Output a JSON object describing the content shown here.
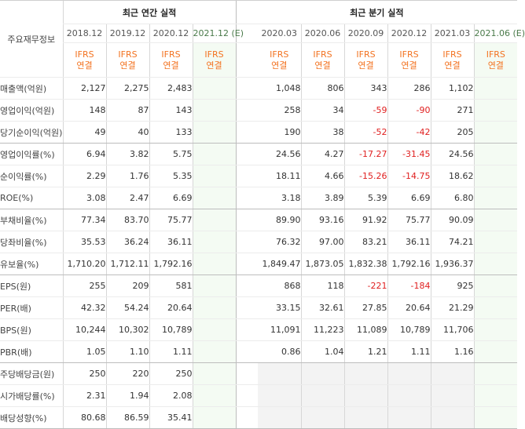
{
  "header": {
    "row_header": "주요재무정보",
    "annual_title": "최근 연간 실적",
    "quarterly_title": "최근 분기 실적"
  },
  "annual_periods": [
    "2018.12",
    "2019.12",
    "2020.12",
    "2021.12 (E)"
  ],
  "quarterly_periods": [
    "2020.03",
    "2020.06",
    "2020.09",
    "2020.12",
    "2021.03",
    "2021.06 (E)"
  ],
  "accounting": {
    "line1": "IFRS",
    "line2": "연결"
  },
  "rows": [
    {
      "label": "매출액(억원)",
      "annual": [
        "2,127",
        "2,275",
        "2,483",
        ""
      ],
      "quarterly": [
        "1,048",
        "806",
        "343",
        "286",
        "1,102",
        ""
      ]
    },
    {
      "label": "영업이익(억원)",
      "annual": [
        "148",
        "87",
        "143",
        ""
      ],
      "quarterly": [
        "258",
        "34",
        "-59",
        "-90",
        "271",
        ""
      ]
    },
    {
      "label": "당기순이익(억원)",
      "annual": [
        "49",
        "40",
        "133",
        ""
      ],
      "quarterly": [
        "190",
        "38",
        "-52",
        "-42",
        "205",
        ""
      ]
    },
    {
      "label": "영업이익률(%)",
      "annual": [
        "6.94",
        "3.82",
        "5.75",
        ""
      ],
      "quarterly": [
        "24.56",
        "4.27",
        "-17.27",
        "-31.45",
        "24.56",
        ""
      ]
    },
    {
      "label": "순이익률(%)",
      "annual": [
        "2.29",
        "1.76",
        "5.35",
        ""
      ],
      "quarterly": [
        "18.11",
        "4.66",
        "-15.26",
        "-14.75",
        "18.62",
        ""
      ]
    },
    {
      "label": "ROE(%)",
      "annual": [
        "3.08",
        "2.47",
        "6.69",
        ""
      ],
      "quarterly": [
        "3.18",
        "3.89",
        "5.39",
        "6.69",
        "6.80",
        ""
      ]
    },
    {
      "label": "부채비율(%)",
      "annual": [
        "77.34",
        "83.70",
        "75.77",
        ""
      ],
      "quarterly": [
        "89.90",
        "93.16",
        "91.92",
        "75.77",
        "90.09",
        ""
      ]
    },
    {
      "label": "당좌비율(%)",
      "annual": [
        "35.53",
        "36.24",
        "36.11",
        ""
      ],
      "quarterly": [
        "76.32",
        "97.00",
        "83.21",
        "36.11",
        "74.21",
        ""
      ]
    },
    {
      "label": "유보율(%)",
      "annual": [
        "1,710.20",
        "1,712.11",
        "1,792.16",
        ""
      ],
      "quarterly": [
        "1,849.47",
        "1,873.05",
        "1,832.38",
        "1,792.16",
        "1,936.37",
        ""
      ]
    },
    {
      "label": "EPS(원)",
      "annual": [
        "255",
        "209",
        "581",
        ""
      ],
      "quarterly": [
        "868",
        "118",
        "-221",
        "-184",
        "925",
        ""
      ]
    },
    {
      "label": "PER(배)",
      "annual": [
        "42.32",
        "54.24",
        "20.64",
        ""
      ],
      "quarterly": [
        "33.15",
        "32.61",
        "27.85",
        "20.64",
        "21.29",
        ""
      ]
    },
    {
      "label": "BPS(원)",
      "annual": [
        "10,244",
        "10,302",
        "10,789",
        ""
      ],
      "quarterly": [
        "11,091",
        "11,223",
        "11,089",
        "10,789",
        "11,706",
        ""
      ]
    },
    {
      "label": "PBR(배)",
      "annual": [
        "1.05",
        "1.10",
        "1.11",
        ""
      ],
      "quarterly": [
        "0.86",
        "1.04",
        "1.21",
        "1.11",
        "1.16",
        ""
      ]
    },
    {
      "label": "주당배당금(원)",
      "annual": [
        "250",
        "220",
        "250",
        ""
      ],
      "quarterly": [
        "",
        "",
        "",
        "",
        "",
        ""
      ]
    },
    {
      "label": "시가배당률(%)",
      "annual": [
        "2.31",
        "1.94",
        "2.08",
        ""
      ],
      "quarterly": [
        "",
        "",
        "",
        "",
        "",
        ""
      ]
    },
    {
      "label": "배당성향(%)",
      "annual": [
        "80.68",
        "86.59",
        "35.41",
        ""
      ],
      "quarterly": [
        "",
        "",
        "",
        "",
        "",
        ""
      ]
    }
  ],
  "colors": {
    "accounting_text": "#f37321",
    "negative_text": "#e02020",
    "estimate_column_bg": "#f4fbf3",
    "empty_cell_bg": "#f3f3f3",
    "estimate_header_text": "#4a7a4a"
  }
}
